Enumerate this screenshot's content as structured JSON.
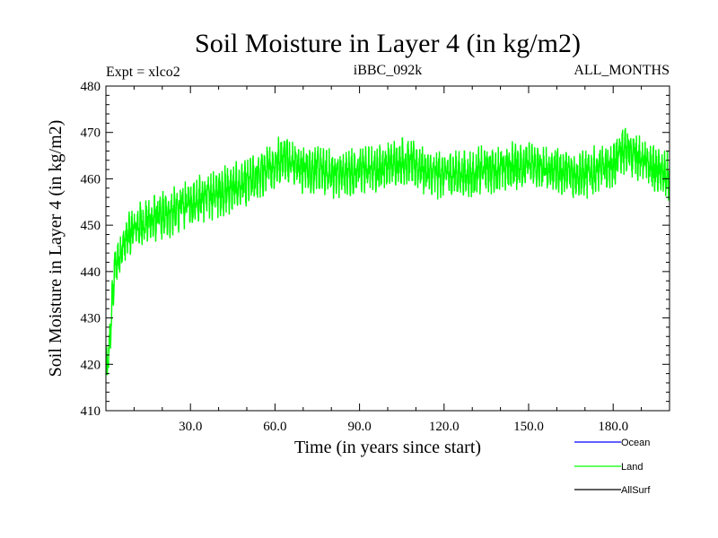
{
  "chart_data": {
    "type": "line",
    "title": "Soil Moisture in Layer 4 (in kg/m2)",
    "subtitle_left": "Expt = xlco2",
    "subtitle_center": "iBBC_092k",
    "subtitle_right": "ALL_MONTHS",
    "xlabel": "Time (in years since start)",
    "ylabel": "Soil Moisture in Layer 4 (in kg/m2)",
    "xlim": [
      0,
      200
    ],
    "ylim": [
      410,
      480
    ],
    "xticks": [
      30,
      60,
      90,
      120,
      150,
      180
    ],
    "xtick_labels": [
      "30.0",
      "60.0",
      "90.0",
      "120.0",
      "150.0",
      "180.0"
    ],
    "yticks": [
      410,
      420,
      430,
      440,
      450,
      460,
      470,
      480
    ],
    "ytick_labels": [
      "410",
      "420",
      "430",
      "440",
      "450",
      "460",
      "470",
      "480"
    ],
    "legend": [
      {
        "name": "Ocean",
        "color": "#0000ff"
      },
      {
        "name": "Land",
        "color": "#00ff00"
      },
      {
        "name": "AllSurf",
        "color": "#000000"
      }
    ],
    "series": [
      {
        "name": "Land",
        "color": "#00ff00",
        "trend": {
          "x": [
            0,
            1,
            2,
            3,
            5,
            8,
            12,
            16,
            20,
            25,
            30,
            35,
            40,
            45,
            50,
            55,
            60,
            63,
            66,
            70,
            75,
            80,
            85,
            90,
            95,
            100,
            105,
            110,
            115,
            120,
            125,
            130,
            135,
            140,
            145,
            150,
            155,
            160,
            165,
            170,
            175,
            180,
            183,
            186,
            190,
            195,
            200
          ],
          "y": [
            417,
            422,
            431,
            440,
            444,
            448,
            450,
            451,
            452,
            453,
            455,
            456,
            457,
            458,
            459,
            461,
            463,
            465,
            464,
            462,
            462,
            461,
            461,
            462,
            462,
            463,
            464,
            463,
            461,
            461,
            461,
            461,
            462,
            462,
            463,
            463,
            462,
            462,
            461,
            461,
            462,
            463,
            466,
            466,
            464,
            462,
            460
          ]
        },
        "amplitude": 3.5,
        "samples_per_year": 12
      }
    ]
  }
}
